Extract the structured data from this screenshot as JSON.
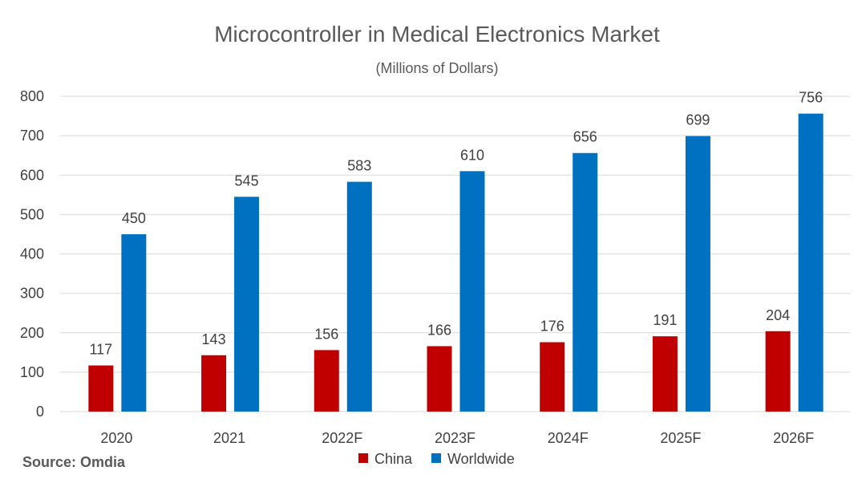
{
  "chart_data": {
    "type": "bar",
    "title": "Microcontroller in Medical Electronics Market",
    "subtitle": "(Millions of Dollars)",
    "categories": [
      "2020",
      "2021",
      "2022F",
      "2023F",
      "2024F",
      "2025F",
      "2026F"
    ],
    "series": [
      {
        "name": "China",
        "color": "#c00000",
        "values": [
          117,
          143,
          156,
          166,
          176,
          191,
          204
        ]
      },
      {
        "name": "Worldwide",
        "color": "#0070c0",
        "values": [
          450,
          545,
          583,
          610,
          656,
          699,
          756
        ]
      }
    ],
    "yticks": [
      0,
      100,
      200,
      300,
      400,
      500,
      600,
      700,
      800
    ],
    "ylim": [
      0,
      800
    ],
    "grid": true,
    "legend": "bottom-center",
    "source": "Source: Omdia"
  }
}
